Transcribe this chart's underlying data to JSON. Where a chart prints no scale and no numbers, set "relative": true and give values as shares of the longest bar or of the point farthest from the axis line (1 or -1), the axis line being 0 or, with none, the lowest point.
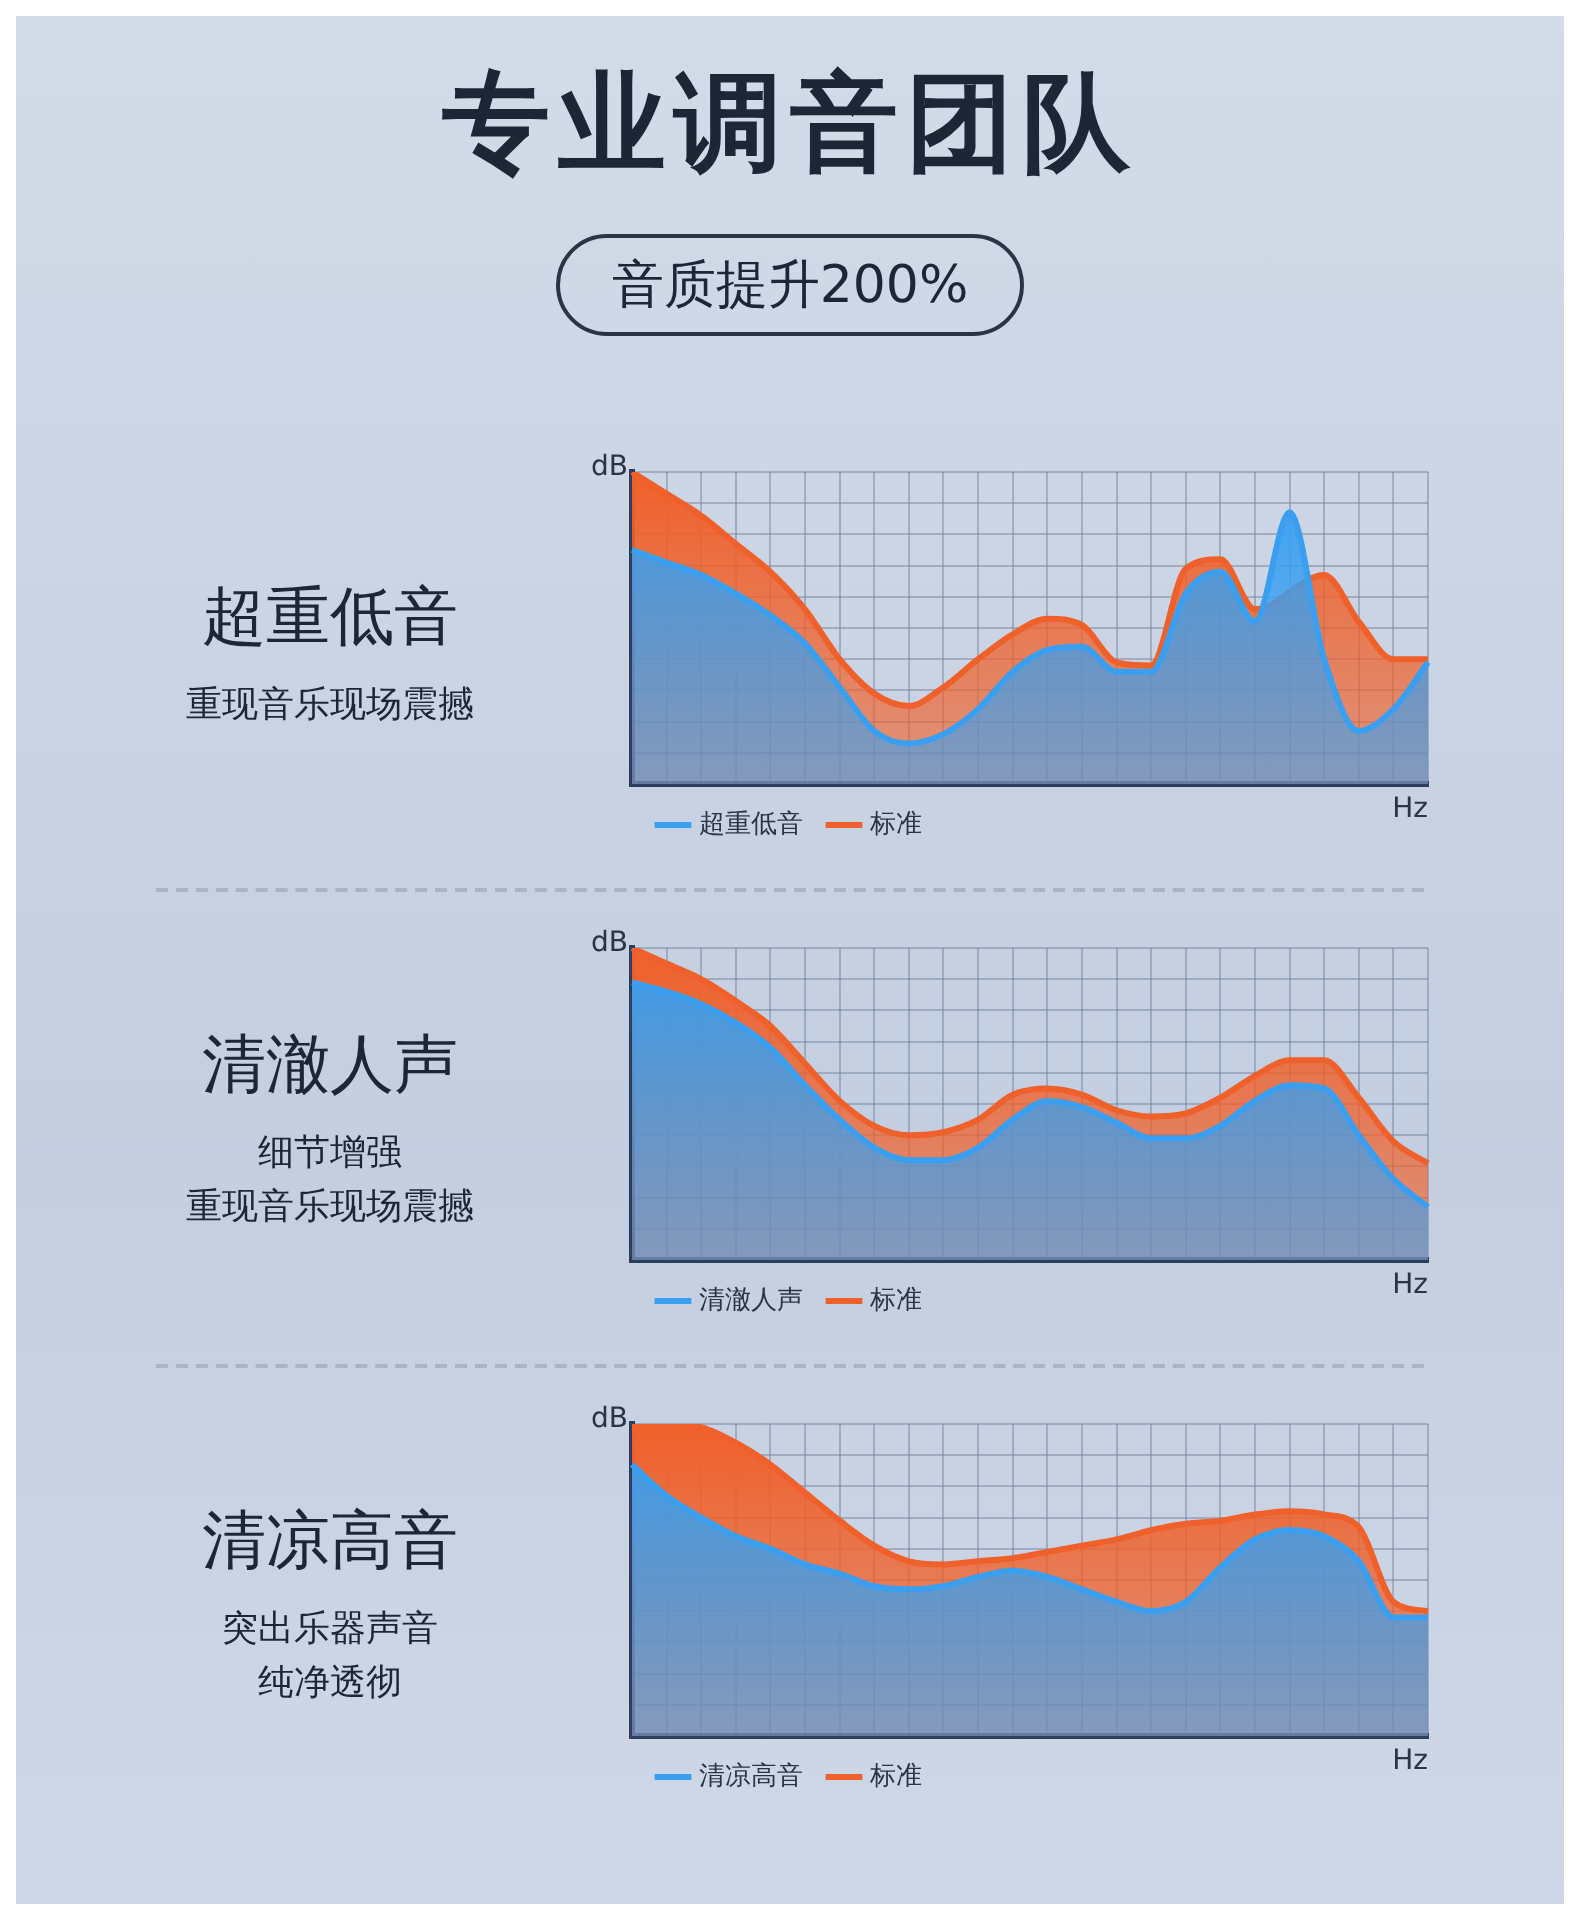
{
  "chart_data": [
    {
      "type": "other",
      "title": "专业调音团队",
      "subtitle": "音质提升200%"
    },
    {
      "type": "area",
      "title": "超重低音",
      "subtitle": "重现音乐现场震撼",
      "ylabel": "dB",
      "xlabel": "Hz",
      "relative": true,
      "grid": true,
      "legend": "bottom",
      "categories": [
        null,
        null,
        null,
        null,
        null,
        null,
        null,
        null,
        null,
        null,
        null,
        null,
        null,
        null,
        null,
        null,
        null,
        null,
        null,
        null,
        null,
        null,
        null,
        null
      ],
      "series": [
        {
          "name": "超重低音",
          "color": "#3a9ff0",
          "values": [
            0.75,
            0.71,
            0.67,
            0.61,
            0.54,
            0.45,
            0.31,
            0.17,
            0.13,
            0.16,
            0.24,
            0.36,
            0.43,
            0.44,
            0.36,
            0.36,
            0.61,
            0.68,
            0.52,
            0.87,
            0.4,
            0.17,
            0.24,
            0.39
          ]
        },
        {
          "name": "标准",
          "color": "#f0602a",
          "values": [
            1.0,
            0.93,
            0.86,
            0.77,
            0.68,
            0.56,
            0.4,
            0.29,
            0.25,
            0.31,
            0.4,
            0.48,
            0.53,
            0.51,
            0.39,
            0.38,
            0.69,
            0.72,
            0.56,
            null,
            0.67,
            0.52,
            0.4,
            0.4
          ]
        }
      ]
    },
    {
      "type": "area",
      "title": "清澈人声",
      "annotations": [
        "细节增强",
        "重现音乐现场震撼"
      ],
      "ylabel": "dB",
      "xlabel": "Hz",
      "relative": true,
      "grid": true,
      "legend": "bottom",
      "categories": [
        null,
        null,
        null,
        null,
        null,
        null,
        null,
        null,
        null,
        null,
        null,
        null,
        null,
        null,
        null,
        null,
        null,
        null,
        null,
        null,
        null,
        null,
        null,
        null
      ],
      "series": [
        {
          "name": "清澈人声",
          "color": "#3a9ff0",
          "values": [
            0.89,
            0.86,
            0.82,
            0.76,
            0.68,
            0.56,
            0.45,
            0.36,
            0.32,
            0.32,
            0.36,
            0.45,
            0.51,
            0.49,
            0.44,
            0.39,
            0.39,
            0.43,
            0.51,
            0.56,
            0.55,
            0.4,
            0.26,
            0.17
          ]
        },
        {
          "name": "标准",
          "color": "#f0602a",
          "values": [
            1.0,
            0.95,
            0.9,
            0.83,
            0.75,
            0.63,
            0.51,
            0.43,
            0.4,
            0.41,
            0.45,
            0.53,
            0.55,
            0.53,
            0.48,
            0.46,
            0.47,
            0.52,
            0.59,
            0.64,
            0.64,
            0.52,
            0.38,
            0.31
          ]
        }
      ]
    },
    {
      "type": "area",
      "title": "清凉高音",
      "subtitle": "突出乐器声音",
      "annotations": [
        "纯净透彻"
      ],
      "ylabel": "dB",
      "xlabel": "Hz",
      "relative": true,
      "grid": true,
      "legend": "bottom",
      "categories": [
        null,
        null,
        null,
        null,
        null,
        null,
        null,
        null,
        null,
        null,
        null,
        null,
        null,
        null,
        null,
        null,
        null,
        null,
        null,
        null,
        null,
        null,
        null,
        null
      ],
      "series": [
        {
          "name": "清凉高音",
          "color": "#3a9ff0",
          "values": [
            0.87,
            0.77,
            0.7,
            0.64,
            0.6,
            0.55,
            0.52,
            0.48,
            0.47,
            0.48,
            0.51,
            0.53,
            0.51,
            0.47,
            0.43,
            0.4,
            0.43,
            0.54,
            0.63,
            0.66,
            0.64,
            0.56,
            0.38,
            0.38
          ]
        },
        {
          "name": "标准",
          "color": "#f0602a",
          "values": [
            0.99,
            1.0,
            0.99,
            0.94,
            0.87,
            0.78,
            0.69,
            0.61,
            0.56,
            0.55,
            0.56,
            0.57,
            0.59,
            0.61,
            0.63,
            0.66,
            0.68,
            0.69,
            0.71,
            0.72,
            0.71,
            0.67,
            0.43,
            0.4
          ]
        }
      ]
    }
  ]
}
